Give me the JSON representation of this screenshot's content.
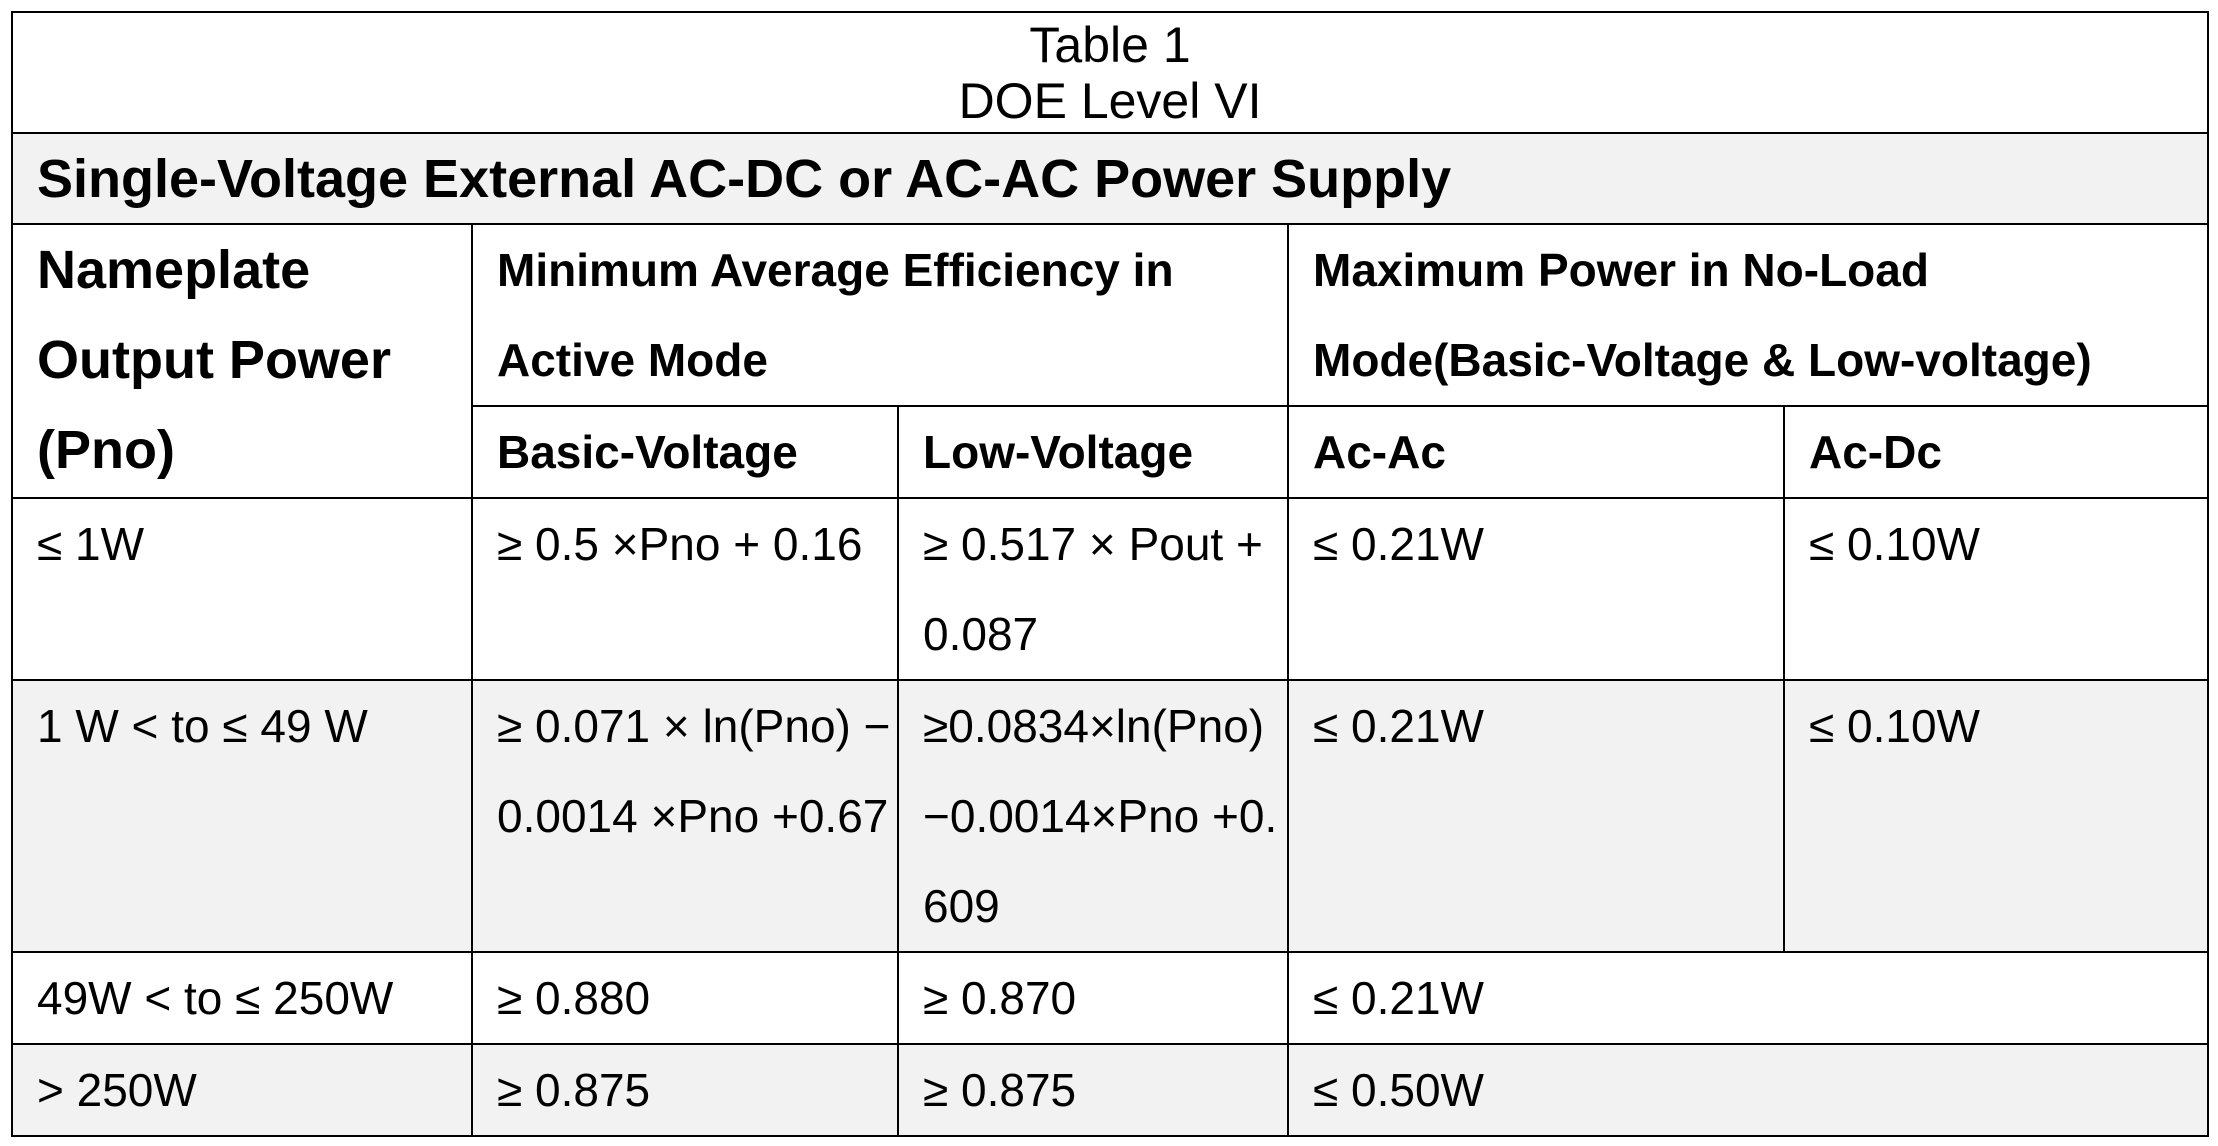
{
  "title": {
    "line1": "Table 1",
    "line2": "DOE Level VI"
  },
  "section": "Single-Voltage External AC-DC or AC-AC Power Supply",
  "headers": {
    "nameplate": "Nameplate Output Power (Pno)",
    "min_eff": "Minimum Average Efficiency in Active Mode",
    "max_power": "Maximum Power in No-Load Mode(Basic-Voltage & Low-voltage)",
    "basic_voltage": "Basic-Voltage",
    "low_voltage": "Low-Voltage",
    "ac_ac": "Ac-Ac",
    "ac_dc": "Ac-Dc"
  },
  "rows": [
    {
      "pno": "≤ 1W",
      "basic": "≥ 0.5 ×Pno + 0.16",
      "low": "≥ 0.517 × Pout + 0.087",
      "acac": "≤ 0.21W",
      "acdc": "≤ 0.10W"
    },
    {
      "pno": "1 W < to ≤ 49 W",
      "basic": "≥ 0.071 × ln(Pno) − 0.0014 ×Pno +0.67",
      "low": "≥0.0834×ln(Pno)−0.0014×Pno +0.609",
      "acac": "≤ 0.21W",
      "acdc": "≤ 0.10W"
    },
    {
      "pno": "49W < to ≤ 250W",
      "basic": "≥ 0.880",
      "low": "≥ 0.870",
      "nl_merged": "≤ 0.21W"
    },
    {
      "pno": "> 250W",
      "basic": "≥ 0.875",
      "low": "≥ 0.875",
      "nl_merged": "≤ 0.50W"
    }
  ]
}
